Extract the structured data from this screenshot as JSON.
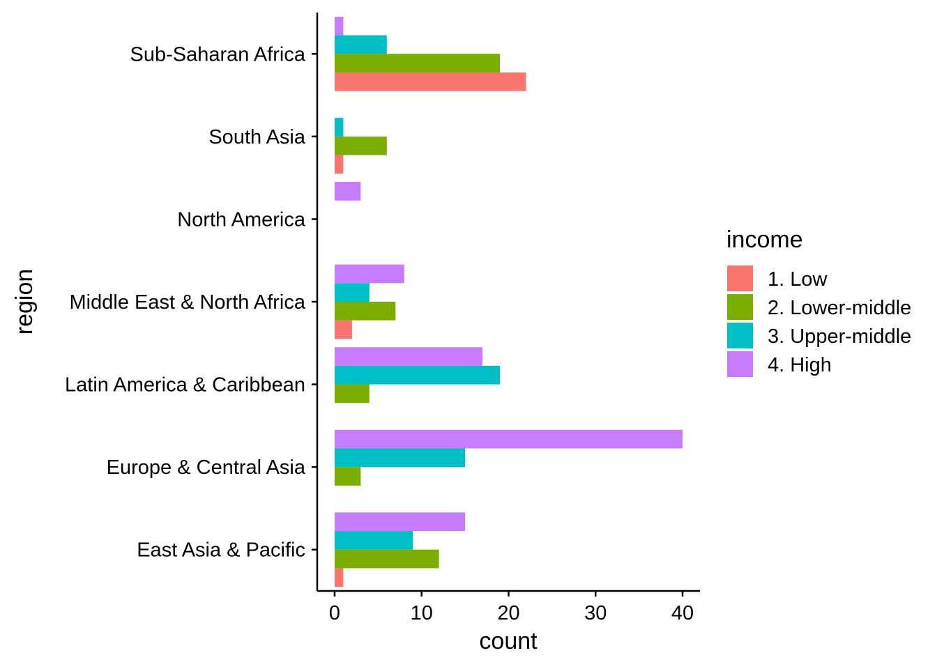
{
  "chart_data": {
    "type": "bar",
    "orientation": "horizontal",
    "categories": [
      "East Asia & Pacific",
      "Europe & Central Asia",
      "Latin America & Caribbean",
      "Middle East & North Africa",
      "North America",
      "South Asia",
      "Sub-Saharan Africa"
    ],
    "series": [
      {
        "name": "1. Low",
        "color": "#F8766D",
        "values": [
          1,
          0,
          0,
          2,
          0,
          1,
          22
        ]
      },
      {
        "name": "2. Lower-middle",
        "color": "#7CAE00",
        "values": [
          12,
          3,
          4,
          7,
          0,
          6,
          19
        ]
      },
      {
        "name": "3. Upper-middle",
        "color": "#00BFC4",
        "values": [
          9,
          15,
          19,
          4,
          0,
          1,
          6
        ]
      },
      {
        "name": "4. High",
        "color": "#C77CFF",
        "values": [
          15,
          40,
          17,
          8,
          3,
          0,
          1
        ]
      }
    ],
    "xlabel": "count",
    "ylabel": "region",
    "xlim": [
      -2,
      42
    ],
    "xticks": [
      0,
      10,
      20,
      30,
      40
    ],
    "legend_title": "income",
    "legend_position": "right",
    "grid": false
  }
}
